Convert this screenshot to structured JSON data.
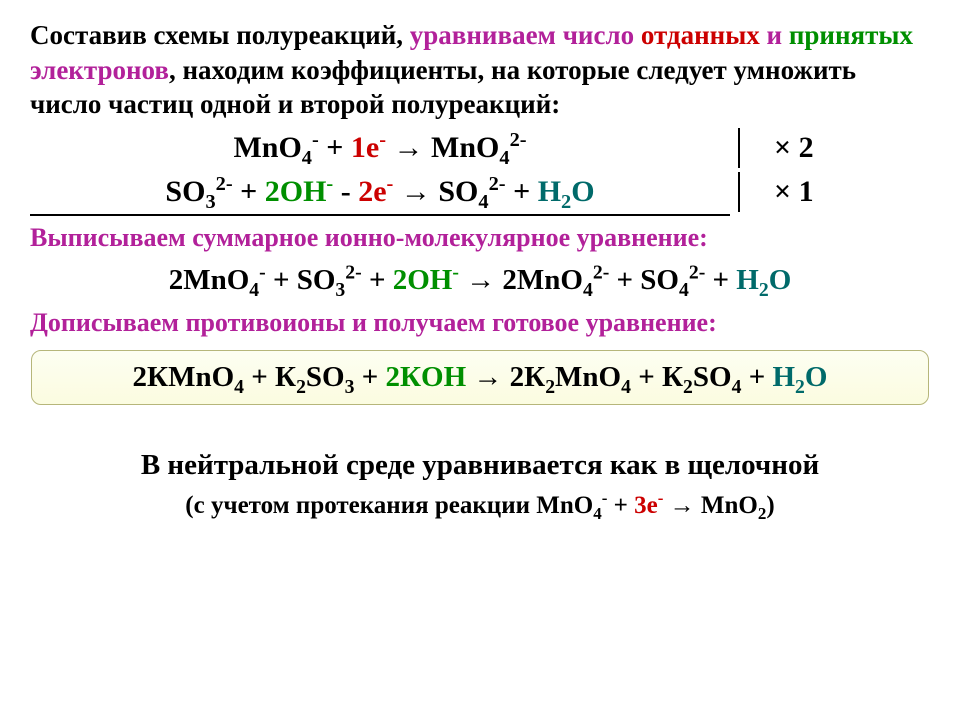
{
  "colors": {
    "black": "#000000",
    "magenta": "#b2219a",
    "green": "#008f00",
    "red": "#cc0000",
    "teal": "#006a6a",
    "pageBg": "#ffffff",
    "boxBgTop": "#fdfef2",
    "boxBgBottom": "#fbfce0",
    "boxBorder": "#b6b67a"
  },
  "fonts": {
    "introSize": 27,
    "eqSize": 30,
    "paraSize": 26,
    "ionicSize": 29,
    "finalSize": 29,
    "neutralSize": 29,
    "neutralNoteSize": 25,
    "weight": "bold"
  },
  "intro": {
    "t1a": "Составив схемы полуреакций, ",
    "t1b": "уравниваем число ",
    "t1c": "отданных",
    "t1d": " и ",
    "t2a": "принятых",
    "t2b": " электронов",
    "t2c": ", находим коэффициенты, на которые следует умножить число частиц одной и второй полуреакций:"
  },
  "half1": {
    "pre": "MnO",
    "sub1": "4",
    "sup1": "-",
    "plus": " + ",
    "e_coef": "1e",
    "e_sup": "-",
    "arrow": " →   ",
    "prod": "MnO",
    "sub2": "4",
    "sup2": "2-",
    "mult_sym": "×",
    "mult_n": " 2"
  },
  "half2": {
    "r1": "SO",
    "r1sub": "3",
    "r1sup": "2-",
    "plus1": " + ",
    "oh_coef": "2OH",
    "oh_sup": "-",
    "minus": "  -  ",
    "e_coef": "2e",
    "e_sup": "-",
    "arrow": " →  ",
    "p1": "SO",
    "p1sub": "4",
    "p1sup": "2-",
    "plus2": "  + ",
    "h2o_h": "H",
    "h2o_2": "2",
    "h2o_o": "O",
    "mult_sym": "×",
    "mult_n": " 1"
  },
  "para_ionic": "Выписываем суммарное ионно-молекулярное уравнение:",
  "ionic": {
    "a": "2MnO",
    "a_sub": "4",
    "a_sup": "-",
    "p1": " + SO",
    "b_sub": "3",
    "b_sup": "2-",
    "p2": " + ",
    "oh": "2OH",
    "oh_sup": "-",
    "arr": " → ",
    "c": "2MnO",
    "c_sub": "4",
    "c_sup": "2-",
    "p3": " + SO",
    "d_sub": "4",
    "d_sup": "2-",
    "p4": " + ",
    "hH": "H",
    "h2": "2",
    "hO": "O"
  },
  "para_counter": "Дописываем противоионы и получаем готовое уравнение:",
  "final": {
    "a": "2КMnO",
    "a_sub": "4",
    "p1": " + К",
    "b_sub": "2",
    "b2": "SO",
    "b2_sub": "3",
    "p2": " + ",
    "koh": "2КOH",
    "arr": " → ",
    "c": "2К",
    "c_sub": "2",
    "c2": "MnO",
    "c2_sub": "4",
    "p3": " + К",
    "d_sub": "2",
    "d2": "SO",
    "d2_sub": "4",
    "p4": " + ",
    "hH": "H",
    "h2": "2",
    "hO": "O"
  },
  "neutral": "В нейтральной среде уравнивается как в щелочной",
  "neutral_note": {
    "a": "(с учетом протекания реакции MnO",
    "a_sub": "4",
    "a_sup": "-",
    "p1": " + ",
    "e": "3e",
    "e_sup": "-",
    "arr": " →   ",
    "b": "MnO",
    "b_sub": "2",
    "close": ")"
  }
}
